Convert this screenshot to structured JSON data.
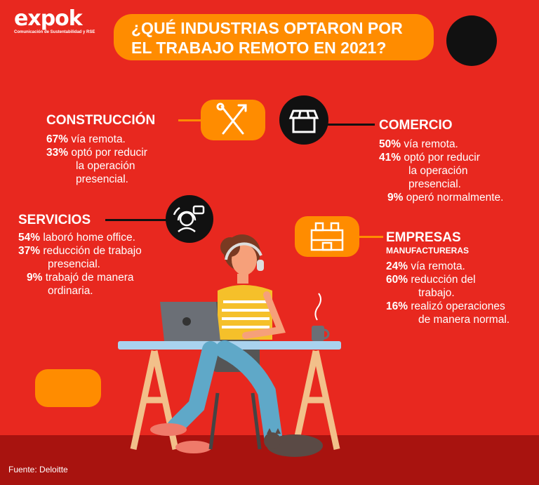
{
  "logo": {
    "brand": "expok",
    "tagline": "Comunicación de Sustentabilidad y RSE"
  },
  "title": {
    "line1": "¿QUÉ INDUSTRIAS OPTARON POR",
    "line2": "EL TRABAJO REMOTO EN 2021?"
  },
  "construccion": {
    "heading": "CONSTRUCCIÓN",
    "stats": [
      {
        "pct": "67%",
        "text": " vía remota."
      },
      {
        "pct": "33%",
        "text": " optó por reducir"
      }
    ],
    "cont1": "la operación",
    "cont2": "presencial."
  },
  "comercio": {
    "heading": "COMERCIO",
    "stats": [
      {
        "pct": "50%",
        "text": " vía remota."
      },
      {
        "pct": "41%",
        "text": " optó por reducir"
      },
      {
        "pct": "9%",
        "text": " operó normalmente."
      }
    ],
    "cont1": "la operación",
    "cont2": "presencial."
  },
  "servicios": {
    "heading": "SERVICIOS",
    "stats": [
      {
        "pct": "54%",
        "text": " laboró home office."
      },
      {
        "pct": "37%",
        "text": " reducción de trabajo"
      },
      {
        "pct": "9%",
        "text": " trabajó de manera"
      }
    ],
    "cont1": "presencial.",
    "cont2": "ordinaria."
  },
  "manufactureras": {
    "heading": "EMPRESAS",
    "subheading": "MANUFACTURERAS",
    "stats": [
      {
        "pct": "24%",
        "text": " vía remota."
      },
      {
        "pct": "60%",
        "text": " reducción del"
      },
      {
        "pct": "16%",
        "text": " realizó operaciones"
      }
    ],
    "cont1": "trabajo.",
    "cont2": "de manera normal."
  },
  "source": "Fuente: Deloitte",
  "colors": {
    "background": "#e8281f",
    "accent": "#ff8c00",
    "dark": "#111111",
    "floor": "#a8130f"
  },
  "icons": [
    "tools-icon",
    "store-icon",
    "headset-support-icon",
    "factory-icon"
  ]
}
